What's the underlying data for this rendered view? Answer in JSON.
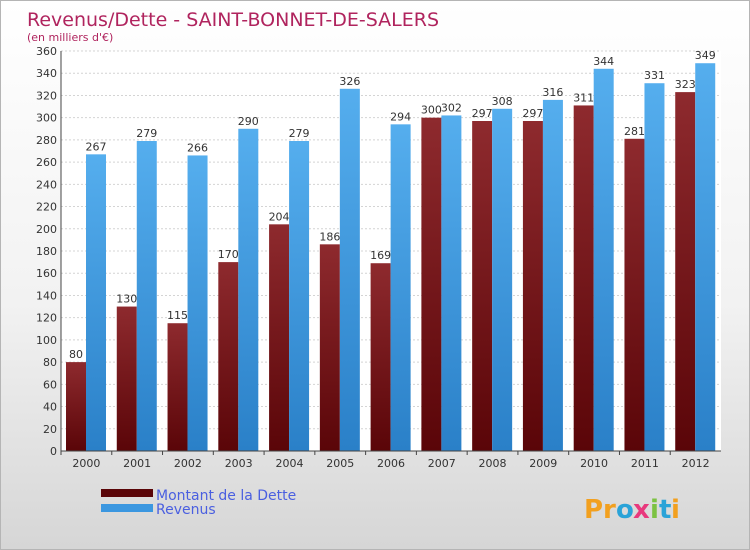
{
  "chart_data": {
    "type": "bar",
    "title": "Revenus/Dette - SAINT-BONNET-DE-SALERS",
    "subtitle": "(en milliers d'€)",
    "categories": [
      "2000",
      "2001",
      "2002",
      "2003",
      "2004",
      "2005",
      "2006",
      "2007",
      "2008",
      "2009",
      "2010",
      "2011",
      "2012"
    ],
    "series": [
      {
        "name": "Montant de la Dette",
        "color": "#7a1216",
        "values": [
          80,
          130,
          115,
          170,
          204,
          186,
          169,
          300,
          297,
          297,
          311,
          281,
          323
        ]
      },
      {
        "name": "Revenus",
        "color": "#3b97e0",
        "values": [
          267,
          279,
          266,
          290,
          279,
          326,
          294,
          302,
          308,
          316,
          344,
          331,
          349
        ]
      }
    ],
    "ylim": [
      0,
      360
    ],
    "ytick_step": 20,
    "grid": true,
    "legend_position": "bottom-left"
  },
  "logo": {
    "text": "Proxiti",
    "letters": [
      "P",
      "r",
      "o",
      "x",
      "i",
      "t",
      "i"
    ],
    "colors": [
      "#f2a01f",
      "#f2a01f",
      "#2aa3d8",
      "#e8397d",
      "#7cc242",
      "#2aa3d8",
      "#f2a01f"
    ]
  }
}
